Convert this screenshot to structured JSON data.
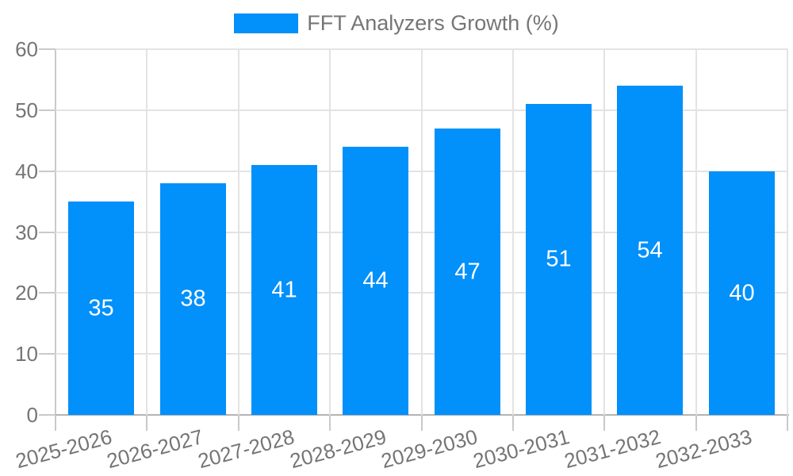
{
  "legend": {
    "label": "FFT Analyzers Growth (%)"
  },
  "chart_data": {
    "type": "bar",
    "title": "FFT Analyzers Growth (%)",
    "categories": [
      "2025-2026",
      "2026-2027",
      "2027-2028",
      "2028-2029",
      "2029-2030",
      "2030-2031",
      "2031-2032",
      "2032-2033"
    ],
    "values": [
      35,
      38,
      41,
      44,
      47,
      51,
      54,
      40
    ],
    "series_name": "FFT Analyzers Growth (%)",
    "xlabel": "",
    "ylabel": "",
    "ylim": [
      0,
      60
    ],
    "yticks": [
      0,
      10,
      20,
      30,
      40,
      50,
      60
    ],
    "grid": true,
    "legend_position": "top-center",
    "bar_labels_inside": true,
    "x_label_rotation_deg": -15,
    "colors": {
      "bar": "#0290fa",
      "bar_label": "#ffffff",
      "text": "#757575",
      "grid": "#e3e3e3",
      "axis_line": "#b3b3b3",
      "tick_line": "#c9c9c9"
    }
  }
}
